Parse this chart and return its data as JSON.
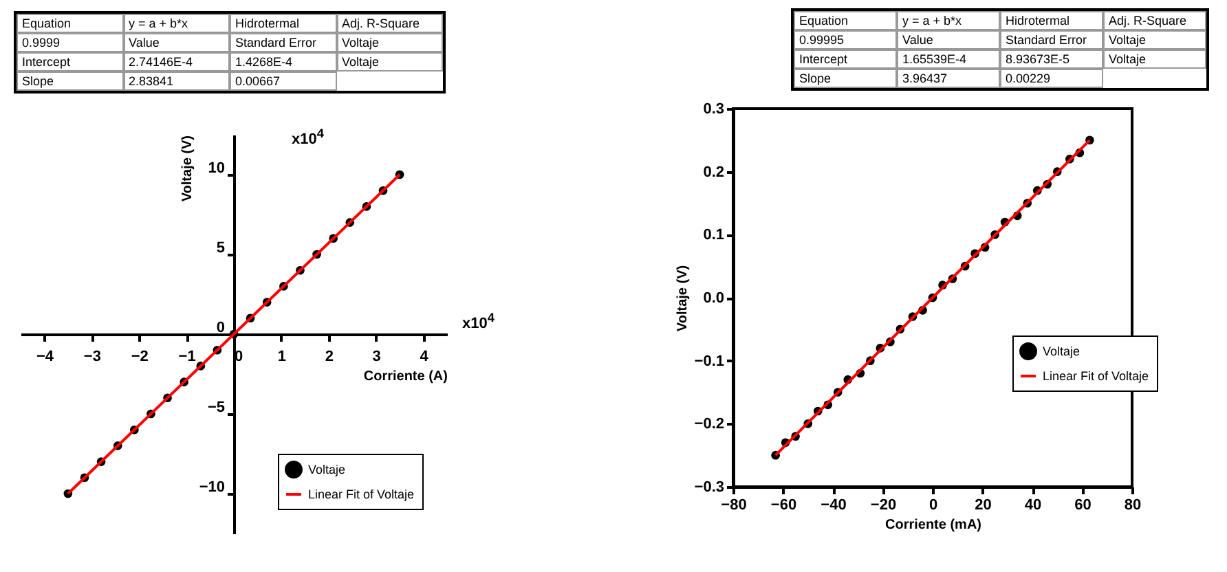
{
  "chart_data": [
    {
      "type": "scatter",
      "xlabel": "Corriente (A)",
      "ylabel": "Voltaje (V)",
      "xlim": [
        -4.5,
        4.5
      ],
      "ylim": [
        -12.5,
        12.5
      ],
      "xticks": [
        -4,
        -3,
        -2,
        -1,
        0,
        1,
        2,
        3,
        4
      ],
      "yticks": [
        -10,
        -5,
        0,
        5,
        10
      ],
      "legend": "bottom right",
      "annotations": [
        "Equation",
        "y = a + b*x",
        "Hidrotermal",
        "Adj. R-Square",
        "0.9999",
        "Value",
        "Standard Error",
        "Voltaje",
        "Intercept",
        "2.74146E-4",
        "1.4268E-4",
        "Voltaje",
        "Slope",
        "2.83841",
        "0.00667",
        "x10$^{4}$",
        "x10$^{4}$"
      ],
      "series": [
        {
          "name": "Voltaje",
          "type": "scatter",
          "marker": "circle",
          "color": "#000000",
          "x": [
            -3.5,
            -3.15,
            -2.8,
            -2.45,
            -2.1,
            -1.75,
            -1.4,
            -1.05,
            -0.7,
            -0.35,
            0,
            0.35,
            0.7,
            1.05,
            1.4,
            1.75,
            2.1,
            2.45,
            2.8,
            3.15,
            3.5
          ],
          "values": [
            -10,
            -9,
            -8,
            -7,
            -6,
            -5,
            -4,
            -3,
            -2,
            -1,
            0,
            1,
            2,
            3,
            4,
            5,
            6,
            7,
            8,
            9,
            10
          ]
        },
        {
          "name": "Linear Fit of Voltaje",
          "type": "line",
          "color": "#ff0000",
          "x": [
            -3.5,
            3.5
          ],
          "values": [
            -10,
            10
          ]
        }
      ]
    },
    {
      "type": "scatter",
      "xlabel": "Corriente (mA)",
      "ylabel": "Voltaje (V)",
      "xlim": [
        -80,
        80
      ],
      "ylim": [
        -0.3,
        0.3
      ],
      "xticks": [
        -80,
        -60,
        -40,
        -20,
        0,
        20,
        40,
        60,
        80
      ],
      "yticks": [
        -0.3,
        -0.2,
        -0.1,
        {
          "value": 0,
          "label": "0.0"
        },
        0.1,
        0.2,
        0.3
      ],
      "legend": "right",
      "annotations": [
        "Equation",
        "y = a + b*x",
        "Hidrotermal",
        "Adj. R-Square",
        "0.99995",
        "Value",
        "Standard Error",
        "Voltaje",
        "Intercept",
        "1.65539E-4",
        "8.93673E-5",
        "Voltaje",
        "Slope",
        "3.96437",
        "0.00229"
      ],
      "series": [
        {
          "name": "Voltaje",
          "type": "scatter",
          "marker": "circle",
          "color": "#000000",
          "x": [
            -63,
            -59,
            -55,
            -50,
            -46,
            -42,
            -38,
            -34,
            -29,
            -25,
            -21,
            -17,
            -13,
            -8,
            -4,
            0,
            4,
            8,
            13,
            17,
            21,
            25,
            29,
            34,
            38,
            42,
            46,
            50,
            55,
            59,
            63
          ],
          "values": [
            -0.25,
            -0.23,
            -0.22,
            -0.2,
            -0.18,
            -0.17,
            -0.15,
            -0.13,
            -0.12,
            -0.1,
            -0.08,
            -0.07,
            -0.05,
            -0.03,
            -0.02,
            0,
            0.02,
            0.03,
            0.05,
            0.07,
            0.08,
            0.1,
            0.12,
            0.13,
            0.15,
            0.17,
            0.18,
            0.2,
            0.22,
            0.23,
            0.25
          ]
        },
        {
          "name": "Linear Fit of Voltaje",
          "type": "line",
          "color": "#ff0000",
          "x": [
            -63,
            63
          ],
          "values": [
            -0.25,
            0.25
          ]
        }
      ]
    }
  ]
}
